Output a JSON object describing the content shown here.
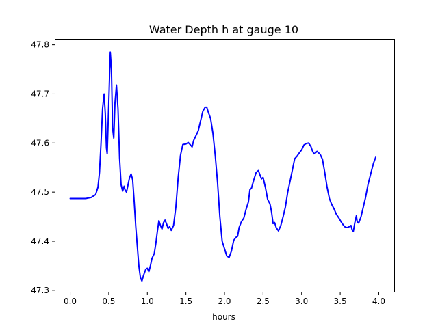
{
  "chart_data": {
    "type": "line",
    "title": "Water Depth h at gauge 10",
    "xlabel": "hours",
    "ylabel": "",
    "xlim": [
      -0.2,
      4.2
    ],
    "ylim": [
      47.297,
      47.812
    ],
    "grid": false,
    "legend": "none",
    "x_ticks": [
      {
        "value": 0.0,
        "label": "0.0"
      },
      {
        "value": 0.5,
        "label": "0.5"
      },
      {
        "value": 1.0,
        "label": "1.0"
      },
      {
        "value": 1.5,
        "label": "1.5"
      },
      {
        "value": 2.0,
        "label": "2.0"
      },
      {
        "value": 2.5,
        "label": "2.5"
      },
      {
        "value": 3.0,
        "label": "3.0"
      },
      {
        "value": 3.5,
        "label": "3.5"
      },
      {
        "value": 4.0,
        "label": "4.0"
      }
    ],
    "y_ticks": [
      {
        "value": 47.3,
        "label": "47.3"
      },
      {
        "value": 47.4,
        "label": "47.4"
      },
      {
        "value": 47.5,
        "label": "47.5"
      },
      {
        "value": 47.6,
        "label": "47.6"
      },
      {
        "value": 47.7,
        "label": "47.7"
      },
      {
        "value": 47.8,
        "label": "47.8"
      }
    ],
    "series": [
      {
        "color": "#0000ff",
        "points": [
          [
            0.0,
            47.487
          ],
          [
            0.1,
            47.487
          ],
          [
            0.2,
            47.487
          ],
          [
            0.27,
            47.489
          ],
          [
            0.33,
            47.495
          ],
          [
            0.36,
            47.51
          ],
          [
            0.38,
            47.54
          ],
          [
            0.4,
            47.6
          ],
          [
            0.42,
            47.67
          ],
          [
            0.44,
            47.7
          ],
          [
            0.455,
            47.66
          ],
          [
            0.47,
            47.59
          ],
          [
            0.48,
            47.578
          ],
          [
            0.5,
            47.68
          ],
          [
            0.52,
            47.785
          ],
          [
            0.535,
            47.75
          ],
          [
            0.55,
            47.63
          ],
          [
            0.565,
            47.61
          ],
          [
            0.58,
            47.68
          ],
          [
            0.6,
            47.718
          ],
          [
            0.62,
            47.67
          ],
          [
            0.64,
            47.57
          ],
          [
            0.66,
            47.515
          ],
          [
            0.68,
            47.502
          ],
          [
            0.7,
            47.512
          ],
          [
            0.71,
            47.505
          ],
          [
            0.73,
            47.5
          ],
          [
            0.75,
            47.515
          ],
          [
            0.77,
            47.53
          ],
          [
            0.79,
            47.537
          ],
          [
            0.81,
            47.525
          ],
          [
            0.83,
            47.48
          ],
          [
            0.85,
            47.43
          ],
          [
            0.87,
            47.39
          ],
          [
            0.89,
            47.35
          ],
          [
            0.91,
            47.326
          ],
          [
            0.93,
            47.319
          ],
          [
            0.95,
            47.33
          ],
          [
            0.98,
            47.343
          ],
          [
            1.0,
            47.345
          ],
          [
            1.02,
            47.338
          ],
          [
            1.04,
            47.35
          ],
          [
            1.06,
            47.365
          ],
          [
            1.09,
            47.375
          ],
          [
            1.11,
            47.395
          ],
          [
            1.13,
            47.42
          ],
          [
            1.15,
            47.442
          ],
          [
            1.17,
            47.432
          ],
          [
            1.19,
            47.425
          ],
          [
            1.21,
            47.438
          ],
          [
            1.23,
            47.443
          ],
          [
            1.25,
            47.435
          ],
          [
            1.27,
            47.426
          ],
          [
            1.29,
            47.43
          ],
          [
            1.31,
            47.422
          ],
          [
            1.34,
            47.432
          ],
          [
            1.37,
            47.47
          ],
          [
            1.4,
            47.53
          ],
          [
            1.43,
            47.575
          ],
          [
            1.46,
            47.597
          ],
          [
            1.5,
            47.598
          ],
          [
            1.53,
            47.601
          ],
          [
            1.56,
            47.596
          ],
          [
            1.58,
            47.592
          ],
          [
            1.6,
            47.605
          ],
          [
            1.63,
            47.615
          ],
          [
            1.66,
            47.625
          ],
          [
            1.69,
            47.645
          ],
          [
            1.72,
            47.665
          ],
          [
            1.75,
            47.673
          ],
          [
            1.77,
            47.673
          ],
          [
            1.79,
            47.663
          ],
          [
            1.82,
            47.65
          ],
          [
            1.85,
            47.62
          ],
          [
            1.88,
            47.575
          ],
          [
            1.91,
            47.52
          ],
          [
            1.94,
            47.45
          ],
          [
            1.97,
            47.4
          ],
          [
            2.0,
            47.385
          ],
          [
            2.03,
            47.37
          ],
          [
            2.06,
            47.367
          ],
          [
            2.09,
            47.38
          ],
          [
            2.12,
            47.402
          ],
          [
            2.15,
            47.408
          ],
          [
            2.17,
            47.41
          ],
          [
            2.19,
            47.428
          ],
          [
            2.22,
            47.44
          ],
          [
            2.25,
            47.447
          ],
          [
            2.28,
            47.465
          ],
          [
            2.31,
            47.48
          ],
          [
            2.33,
            47.505
          ],
          [
            2.35,
            47.508
          ],
          [
            2.38,
            47.525
          ],
          [
            2.41,
            47.54
          ],
          [
            2.44,
            47.544
          ],
          [
            2.46,
            47.535
          ],
          [
            2.48,
            47.527
          ],
          [
            2.5,
            47.53
          ],
          [
            2.53,
            47.51
          ],
          [
            2.56,
            47.485
          ],
          [
            2.59,
            47.476
          ],
          [
            2.61,
            47.46
          ],
          [
            2.63,
            47.436
          ],
          [
            2.65,
            47.438
          ],
          [
            2.67,
            47.428
          ],
          [
            2.7,
            47.421
          ],
          [
            2.73,
            47.432
          ],
          [
            2.76,
            47.45
          ],
          [
            2.79,
            47.47
          ],
          [
            2.82,
            47.5
          ],
          [
            2.85,
            47.522
          ],
          [
            2.88,
            47.545
          ],
          [
            2.91,
            47.568
          ],
          [
            2.94,
            47.573
          ],
          [
            2.97,
            47.58
          ],
          [
            3.0,
            47.586
          ],
          [
            3.03,
            47.596
          ],
          [
            3.06,
            47.599
          ],
          [
            3.09,
            47.6
          ],
          [
            3.12,
            47.593
          ],
          [
            3.14,
            47.584
          ],
          [
            3.16,
            47.578
          ],
          [
            3.18,
            47.58
          ],
          [
            3.2,
            47.583
          ],
          [
            3.22,
            47.58
          ],
          [
            3.24,
            47.577
          ],
          [
            3.27,
            47.567
          ],
          [
            3.3,
            47.54
          ],
          [
            3.33,
            47.51
          ],
          [
            3.36,
            47.487
          ],
          [
            3.39,
            47.475
          ],
          [
            3.42,
            47.466
          ],
          [
            3.45,
            47.455
          ],
          [
            3.48,
            47.448
          ],
          [
            3.51,
            47.44
          ],
          [
            3.54,
            47.433
          ],
          [
            3.57,
            47.428
          ],
          [
            3.6,
            47.428
          ],
          [
            3.62,
            47.43
          ],
          [
            3.64,
            47.432
          ],
          [
            3.655,
            47.423
          ],
          [
            3.67,
            47.42
          ],
          [
            3.69,
            47.438
          ],
          [
            3.71,
            47.452
          ],
          [
            3.72,
            47.44
          ],
          [
            3.74,
            47.437
          ],
          [
            3.77,
            47.45
          ],
          [
            3.8,
            47.47
          ],
          [
            3.83,
            47.49
          ],
          [
            3.86,
            47.515
          ],
          [
            3.9,
            47.54
          ],
          [
            3.93,
            47.558
          ],
          [
            3.96,
            47.571
          ]
        ]
      }
    ]
  }
}
